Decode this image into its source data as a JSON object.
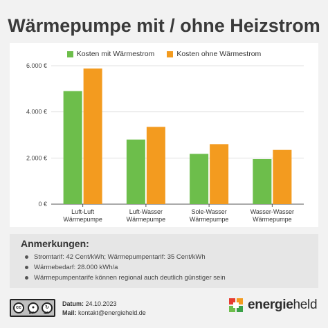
{
  "title": "Wärmepumpe mit / ohne Heizstrom",
  "colors": {
    "green": "#6dbe4b",
    "orange": "#f39b1f",
    "grid": "#e0e0e0",
    "axis": "#555555"
  },
  "chart_data": {
    "type": "bar",
    "categories": [
      [
        "Luft-Luft",
        "Wärmepumpe"
      ],
      [
        "Luft-Wasser",
        "Wärmepumpe"
      ],
      [
        "Sole-Wasser",
        "Wärmepumpe"
      ],
      [
        "Wasser-Wasser",
        "Wärmepumpe"
      ]
    ],
    "series": [
      {
        "name": "Kosten mit Wärmestrom",
        "color": "#6dbe4b",
        "values": [
          4900,
          2800,
          2180,
          1950
        ]
      },
      {
        "name": "Kosten ohne Wärmestrom",
        "color": "#f39b1f",
        "values": [
          5880,
          3350,
          2600,
          2350
        ]
      }
    ],
    "yticks": [
      0,
      2000,
      4000,
      6000
    ],
    "ytick_labels": [
      "0 €",
      "2.000 €",
      "4.000 €",
      "6.000 €"
    ],
    "ylim": [
      0,
      6000
    ],
    "legend": "top-center",
    "grid": true
  },
  "notes": {
    "title": "Anmerkungen:",
    "items": [
      "Stromtarif: 42 Cent/kWh; Wärmepumpentarif: 35 Cent/kWh",
      "Wärmebedarf: 28.000 kWh/a",
      "Wärmepumpentarife können regional auch deutlich günstiger sein"
    ]
  },
  "footer": {
    "license": {
      "cc": "cc",
      "by": "BY",
      "sa": "SA"
    },
    "date_label": "Datum:",
    "date_value": "24.10.2023",
    "mail_label": "Mail:",
    "mail_value": "kontakt@energieheld.de",
    "brand_bold": "energie",
    "brand_light": "held"
  }
}
